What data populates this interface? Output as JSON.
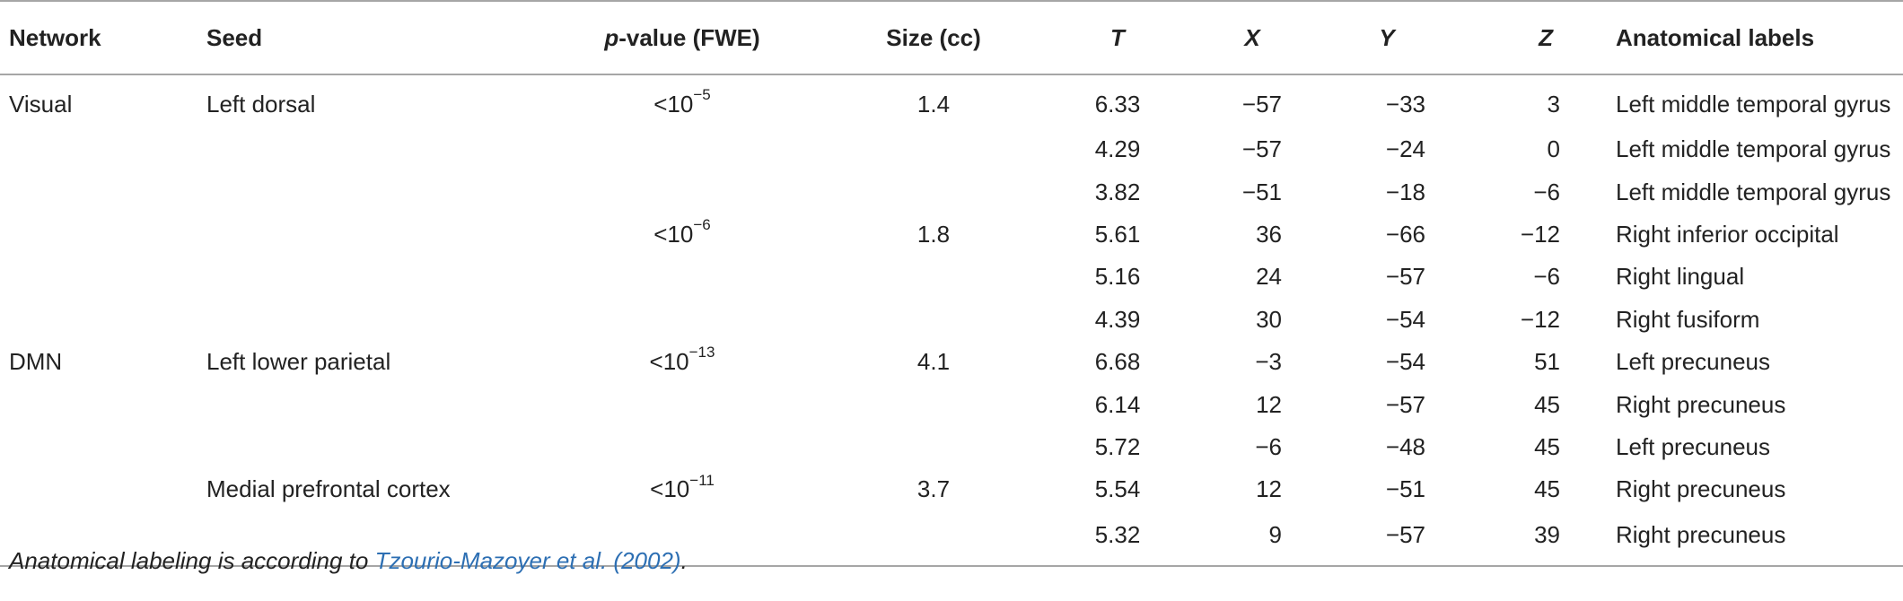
{
  "header": {
    "network": "Network",
    "seed": "Seed",
    "p_italic": "p",
    "p_rest": "-value (FWE)",
    "size": "Size (cc)",
    "t": "T",
    "x": "X",
    "y": "Y",
    "z": "Z",
    "labels": "Anatomical labels"
  },
  "rows": [
    {
      "network": "Visual",
      "seed": "Left dorsal",
      "p_base": "<10",
      "p_exp": "−5",
      "size": "1.4",
      "t": "6.33",
      "x": "−57",
      "y": "−33",
      "z": "3",
      "label": "Left middle temporal gyrus"
    },
    {
      "network": "",
      "seed": "",
      "p_base": "",
      "p_exp": "",
      "size": "",
      "t": "4.29",
      "x": "−57",
      "y": "−24",
      "z": "0",
      "label": "Left middle temporal gyrus"
    },
    {
      "network": "",
      "seed": "",
      "p_base": "",
      "p_exp": "",
      "size": "",
      "t": "3.82",
      "x": "−51",
      "y": "−18",
      "z": "−6",
      "label": "Left middle temporal gyrus"
    },
    {
      "network": "",
      "seed": "",
      "p_base": "<10",
      "p_exp": "−6",
      "size": "1.8",
      "t": "5.61",
      "x": "36",
      "y": "−66",
      "z": "−12",
      "label": "Right inferior occipital"
    },
    {
      "network": "",
      "seed": "",
      "p_base": "",
      "p_exp": "",
      "size": "",
      "t": "5.16",
      "x": "24",
      "y": "−57",
      "z": "−6",
      "label": "Right lingual"
    },
    {
      "network": "",
      "seed": "",
      "p_base": "",
      "p_exp": "",
      "size": "",
      "t": "4.39",
      "x": "30",
      "y": "−54",
      "z": "−12",
      "label": "Right fusiform"
    },
    {
      "network": "DMN",
      "seed": "Left lower parietal",
      "p_base": "<10",
      "p_exp": "−13",
      "size": "4.1",
      "t": "6.68",
      "x": "−3",
      "y": "−54",
      "z": "51",
      "label": "Left precuneus"
    },
    {
      "network": "",
      "seed": "",
      "p_base": "",
      "p_exp": "",
      "size": "",
      "t": "6.14",
      "x": "12",
      "y": "−57",
      "z": "45",
      "label": "Right precuneus"
    },
    {
      "network": "",
      "seed": "",
      "p_base": "",
      "p_exp": "",
      "size": "",
      "t": "5.72",
      "x": "−6",
      "y": "−48",
      "z": "45",
      "label": "Left precuneus"
    },
    {
      "network": "",
      "seed": "Medial prefrontal cortex",
      "p_base": "<10",
      "p_exp": "−11",
      "size": "3.7",
      "t": "5.54",
      "x": "12",
      "y": "−51",
      "z": "45",
      "label": "Right precuneus"
    },
    {
      "network": "",
      "seed": "",
      "p_base": "",
      "p_exp": "",
      "size": "",
      "t": "5.32",
      "x": "9",
      "y": "−57",
      "z": "39",
      "label": "Right precuneus"
    }
  ],
  "footnote": {
    "prefix": "Anatomical labeling is according to ",
    "citation": "Tzourio-Mazoyer et al. (2002)",
    "suffix": "."
  },
  "colors": {
    "text": "#222222",
    "rule": "#a6a6a6",
    "link": "#2d6fb3"
  }
}
